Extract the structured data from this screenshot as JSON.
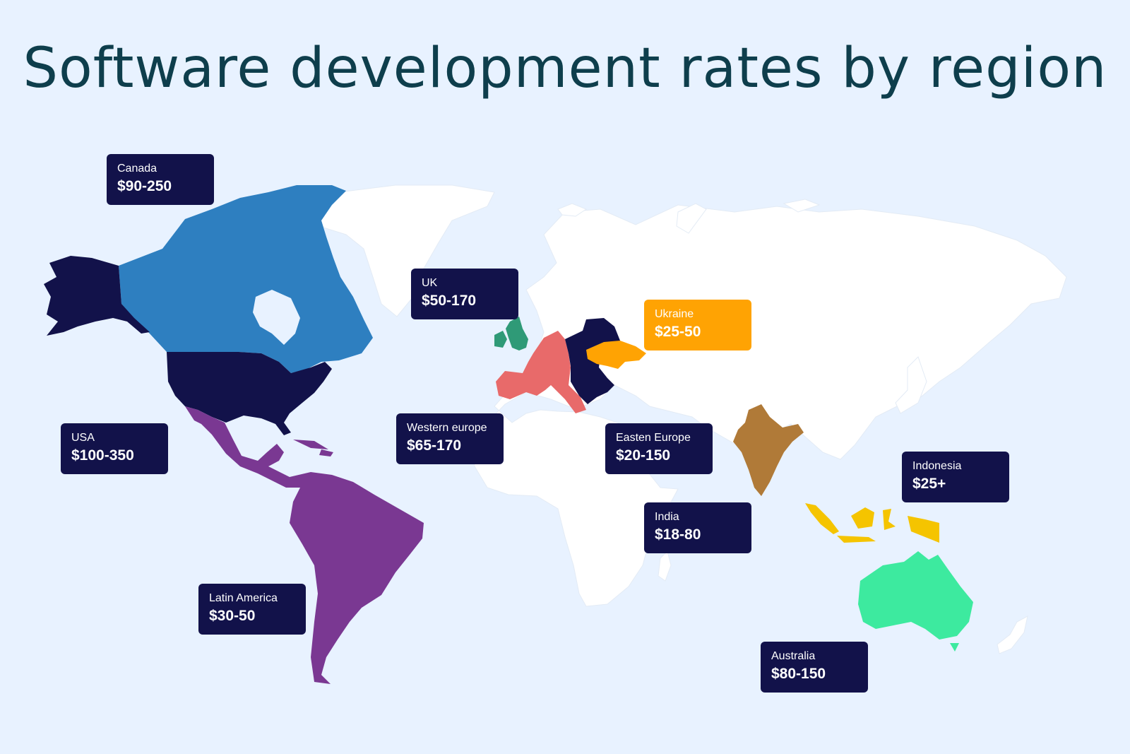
{
  "title": "Software development rates by region",
  "colors": {
    "background": "#e8f2ff",
    "title": "#0e3e4c",
    "land": "#ffffff",
    "callout": "#12124a",
    "callout_highlight": "#ffa303",
    "canada": "#2e7fc0",
    "usa": "#12124a",
    "latin_america": "#7a3892",
    "uk": "#2f9a77",
    "western_europe": "#e86a6a",
    "eastern_europe": "#12124a",
    "ukraine": "#ffa303",
    "india": "#b07a38",
    "indonesia": "#f5c400",
    "australia": "#3dea9f"
  },
  "regions": [
    {
      "name": "Canada",
      "rate": "$90-250"
    },
    {
      "name": "UK",
      "rate": "$50-170"
    },
    {
      "name": "Ukraine",
      "rate": "$25-50"
    },
    {
      "name": "USA",
      "rate": "$100-350"
    },
    {
      "name": "Western europe",
      "rate": "$65-170"
    },
    {
      "name": "Easten Europe",
      "rate": "$20-150"
    },
    {
      "name": "Indonesia",
      "rate": "$25+"
    },
    {
      "name": "India",
      "rate": "$18-80"
    },
    {
      "name": "Latin America",
      "rate": "$30-50"
    },
    {
      "name": "Australia",
      "rate": "$80-150"
    }
  ]
}
